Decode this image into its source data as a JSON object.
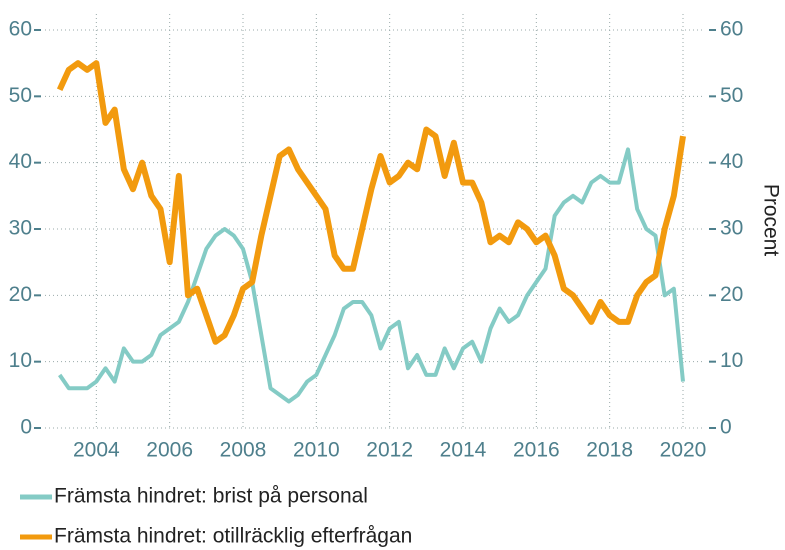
{
  "chart_data": {
    "type": "line",
    "x": [
      2003,
      2003.25,
      2003.5,
      2003.75,
      2004,
      2004.25,
      2004.5,
      2004.75,
      2005,
      2005.25,
      2005.5,
      2005.75,
      2006,
      2006.25,
      2006.5,
      2006.75,
      2007,
      2007.25,
      2007.5,
      2007.75,
      2008,
      2008.25,
      2008.5,
      2008.75,
      2009,
      2009.25,
      2009.5,
      2009.75,
      2010,
      2010.25,
      2010.5,
      2010.75,
      2011,
      2011.25,
      2011.5,
      2011.75,
      2012,
      2012.25,
      2012.5,
      2012.75,
      2013,
      2013.25,
      2013.5,
      2013.75,
      2014,
      2014.25,
      2014.5,
      2014.75,
      2015,
      2015.25,
      2015.5,
      2015.75,
      2016,
      2016.25,
      2016.5,
      2016.75,
      2017,
      2017.25,
      2017.5,
      2017.75,
      2018,
      2018.25,
      2018.5,
      2018.75,
      2019,
      2019.25,
      2019.5,
      2019.75,
      2020
    ],
    "series": [
      {
        "name": "Främsta hindret: brist på personal",
        "color": "#84cbc5",
        "values": [
          8,
          6,
          6,
          6,
          7,
          9,
          7,
          12,
          10,
          10,
          11,
          14,
          15,
          16,
          19,
          23,
          27,
          29,
          30,
          29,
          27,
          22,
          14,
          6,
          5,
          4,
          5,
          7,
          8,
          11,
          14,
          18,
          19,
          19,
          17,
          12,
          15,
          16,
          9,
          11,
          8,
          8,
          12,
          9,
          12,
          13,
          10,
          15,
          18,
          16,
          17,
          20,
          22,
          24,
          32,
          34,
          35,
          34,
          37,
          38,
          37,
          37,
          42,
          33,
          30,
          29,
          20,
          21,
          7
        ]
      },
      {
        "name": "Främsta hindret: otillräcklig efterfrågan",
        "color": "#f29a0e",
        "values": [
          51,
          54,
          55,
          54,
          55,
          46,
          48,
          39,
          36,
          40,
          35,
          33,
          25,
          38,
          20,
          21,
          17,
          13,
          14,
          17,
          21,
          22,
          29,
          35,
          41,
          42,
          39,
          37,
          35,
          33,
          26,
          24,
          24,
          30,
          36,
          41,
          37,
          38,
          40,
          39,
          45,
          44,
          38,
          43,
          37,
          37,
          34,
          28,
          29,
          28,
          31,
          30,
          28,
          29,
          26,
          21,
          20,
          18,
          16,
          19,
          17,
          16,
          16,
          20,
          22,
          23,
          30,
          35,
          44
        ]
      }
    ],
    "xlim": [
      2002.6,
      2020.6
    ],
    "xticks": [
      2004,
      2006,
      2008,
      2010,
      2012,
      2014,
      2016,
      2018,
      2020
    ],
    "ylim": [
      0,
      60
    ],
    "yticks": [
      0,
      10,
      20,
      30,
      40,
      50,
      60
    ],
    "y2lim": [
      0,
      60
    ],
    "y2ticks": [
      0,
      10,
      20,
      30,
      40,
      50,
      60
    ],
    "y2label": "Procent",
    "grid": true,
    "legend": "bottom"
  }
}
